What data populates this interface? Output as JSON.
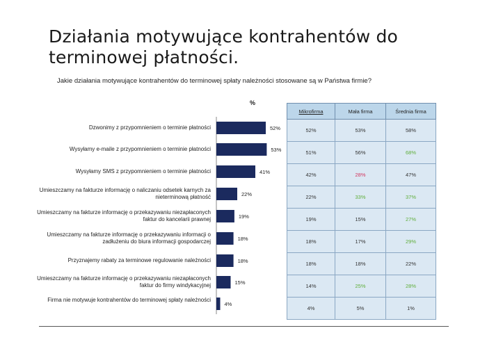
{
  "slide": {
    "title_line1": "Działania motywujące kontrahentów do",
    "title_line2": "terminowej płatności.",
    "question": "Jakie działania motywujące kontrahentów do terminowej spłaty należności stosowane są w Państwa firmie?"
  },
  "colors": {
    "bar": "#1b2a5e",
    "highlight_green": "#5fae3a",
    "highlight_red": "#d2365e"
  },
  "chart_data": {
    "type": "bar",
    "orientation": "horizontal",
    "value_axis_label": "%",
    "categories": [
      "Dzwonimy z przypomnieniem o terminie płatności",
      "Wysyłamy e-maile z przypomnieniem o terminie płatności",
      "Wysyłamy SMS z przypomnieniem o terminie płatności",
      "Umieszczamy na fakturze informację o naliczaniu odsetek karnych za nieterminową płatność",
      "Umieszczamy na fakturze informację o przekazywaniu niezapłaconych faktur do kancelarii prawnej",
      "Umieszczamy na fakturze informację o przekazywaniu informacji o zadłużeniu do biura informacji gospodarczej",
      "Przyznajemy rabaty za terminowe regulowanie należności",
      "Umieszczamy na fakturze informację o przekazywaniu niezapłaconych faktur do firmy windykacyjnej",
      "Firma nie motywuje kontrahentów do terminowej spłaty należności"
    ],
    "values": [
      52,
      53,
      41,
      22,
      19,
      18,
      18,
      15,
      4
    ],
    "value_labels": [
      "52%",
      "53%",
      "41%",
      "22%",
      "19%",
      "18%",
      "18%",
      "15%",
      "4%"
    ],
    "xlim": [
      0,
      60
    ]
  },
  "table": {
    "headers": [
      "Mikrofirma",
      "Mała firma",
      "Średnia firma"
    ],
    "rows": [
      [
        "52%",
        "53%",
        "58%"
      ],
      [
        "51%",
        "56%",
        "68%"
      ],
      [
        "42%",
        "28%",
        "47%"
      ],
      [
        "22%",
        "33%",
        "37%"
      ],
      [
        "19%",
        "15%",
        "27%"
      ],
      [
        "18%",
        "17%",
        "29%"
      ],
      [
        "18%",
        "18%",
        "22%"
      ],
      [
        "14%",
        "25%",
        "28%"
      ],
      [
        "4%",
        "5%",
        "1%"
      ]
    ],
    "highlights": {
      "1-2": "green",
      "2-1": "red",
      "3-1": "green",
      "3-2": "green",
      "4-2": "green",
      "5-2": "green",
      "7-1": "green",
      "7-2": "green"
    }
  }
}
